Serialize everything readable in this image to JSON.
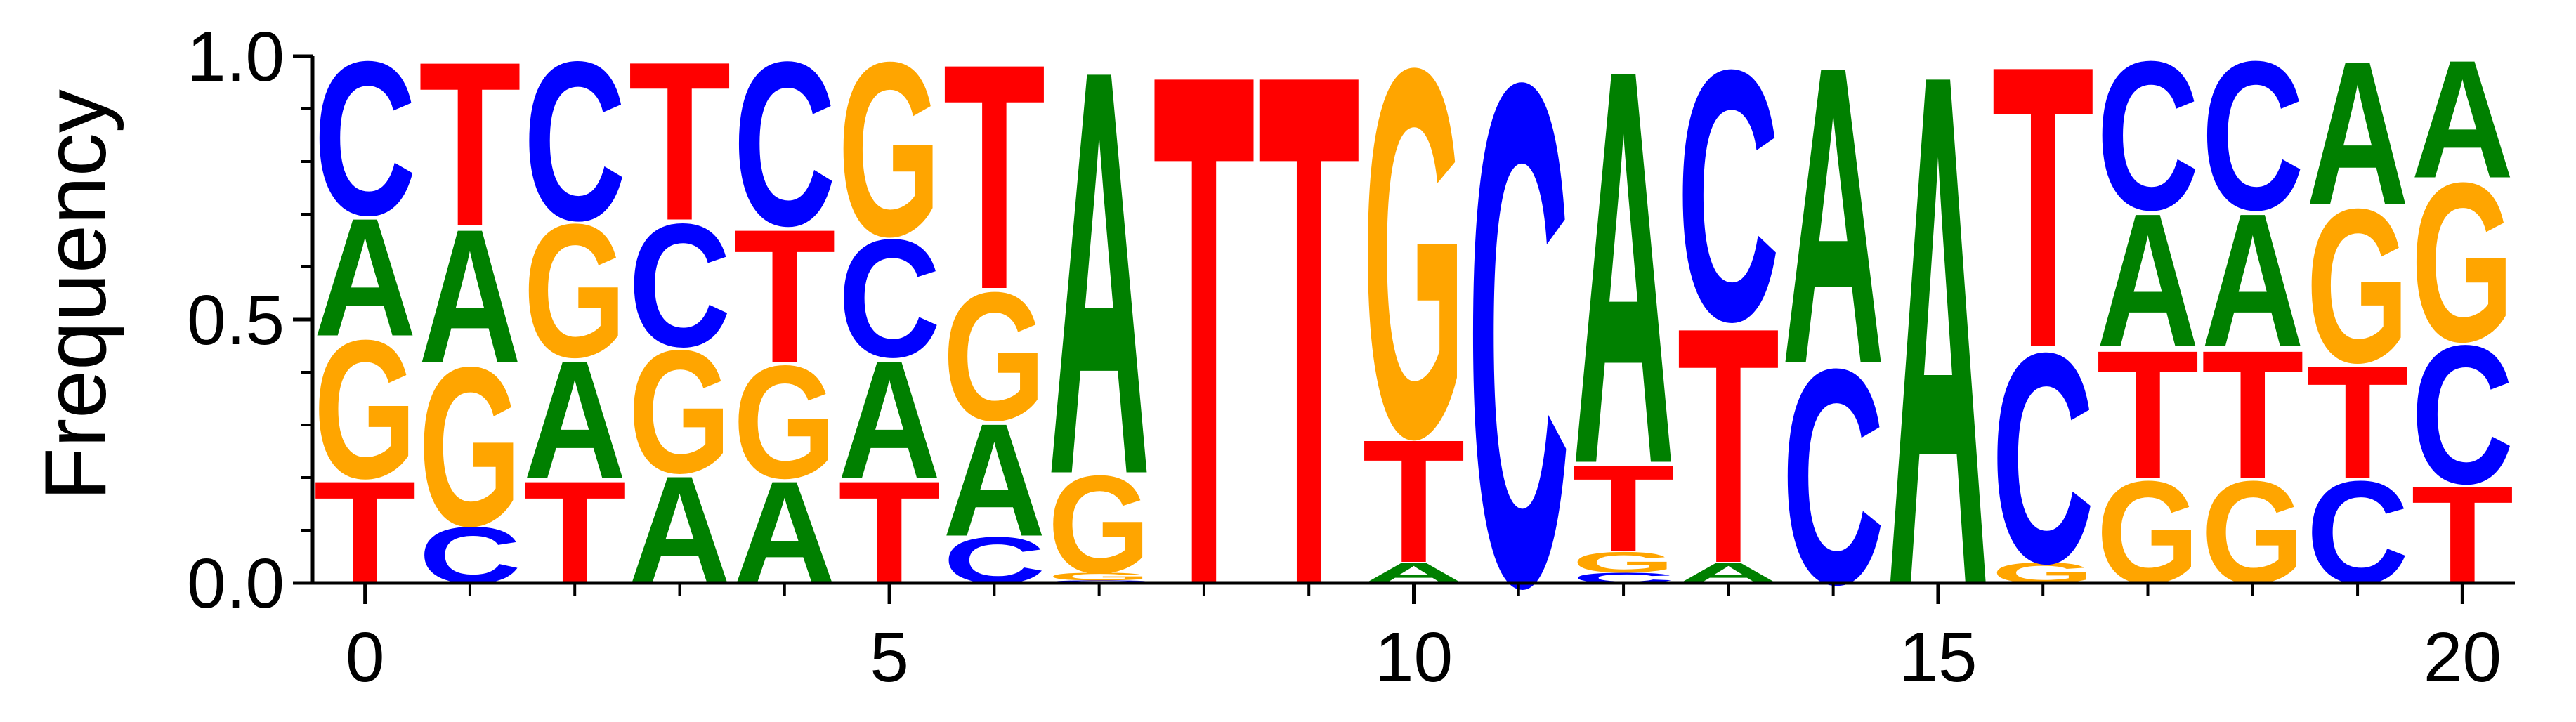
{
  "chart_data": {
    "type": "sequence-logo",
    "title": "",
    "xlabel": "",
    "ylabel": "Frequency",
    "xlim": [
      -0.5,
      20.5
    ],
    "ylim": [
      0,
      1.0
    ],
    "x_ticks": [
      0,
      5,
      10,
      15,
      20
    ],
    "x_tick_labels": [
      "0",
      "5",
      "10",
      "15",
      "20"
    ],
    "x_minor_ticks": [
      1,
      2,
      3,
      4,
      6,
      7,
      8,
      9,
      11,
      12,
      13,
      14,
      16,
      17,
      18,
      19
    ],
    "y_ticks": [
      0.0,
      0.5,
      1.0
    ],
    "y_tick_labels": [
      "0.0",
      "0.5",
      "1.0"
    ],
    "y_minor_ticks": [
      0.1,
      0.2,
      0.3,
      0.4,
      0.6,
      0.7,
      0.8,
      0.9
    ],
    "grid": false,
    "colors": {
      "A": "#008000",
      "C": "#0000ff",
      "G": "#ffa500",
      "T": "#ff0000"
    },
    "positions": [
      {
        "x": 0,
        "stack": [
          [
            "T",
            0.2
          ],
          [
            "G",
            0.27
          ],
          [
            "A",
            0.23
          ],
          [
            "C",
            0.3
          ]
        ]
      },
      {
        "x": 1,
        "stack": [
          [
            "C",
            0.11
          ],
          [
            "G",
            0.31
          ],
          [
            "A",
            0.26
          ],
          [
            "T",
            0.32
          ]
        ]
      },
      {
        "x": 2,
        "stack": [
          [
            "T",
            0.2
          ],
          [
            "A",
            0.23
          ],
          [
            "G",
            0.26
          ],
          [
            "C",
            0.31
          ]
        ]
      },
      {
        "x": 3,
        "stack": [
          [
            "A",
            0.21
          ],
          [
            "G",
            0.24
          ],
          [
            "C",
            0.24
          ],
          [
            "T",
            0.31
          ]
        ]
      },
      {
        "x": 4,
        "stack": [
          [
            "A",
            0.2
          ],
          [
            "G",
            0.22
          ],
          [
            "T",
            0.26
          ],
          [
            "C",
            0.32
          ]
        ]
      },
      {
        "x": 5,
        "stack": [
          [
            "T",
            0.2
          ],
          [
            "A",
            0.23
          ],
          [
            "C",
            0.23
          ],
          [
            "G",
            0.34
          ]
        ]
      },
      {
        "x": 6,
        "stack": [
          [
            "C",
            0.09
          ],
          [
            "A",
            0.22
          ],
          [
            "G",
            0.25
          ],
          [
            "T",
            0.44
          ]
        ]
      },
      {
        "x": 7,
        "stack": [
          [
            "C",
            0.005
          ],
          [
            "G",
            0.015
          ],
          [
            "G",
            0.19
          ],
          [
            "A",
            0.79
          ]
        ]
      },
      {
        "x": 8,
        "stack": [
          [
            "T",
            1.0
          ]
        ]
      },
      {
        "x": 9,
        "stack": [
          [
            "T",
            1.0
          ]
        ]
      },
      {
        "x": 10,
        "stack": [
          [
            "A",
            0.04
          ],
          [
            "T",
            0.24
          ],
          [
            "G",
            0.72
          ]
        ]
      },
      {
        "x": 11,
        "stack": [
          [
            "C",
            0.98
          ]
        ]
      },
      {
        "x": 12,
        "stack": [
          [
            "C",
            0.02
          ],
          [
            "G",
            0.04
          ],
          [
            "T",
            0.17
          ],
          [
            "A",
            0.77
          ]
        ]
      },
      {
        "x": 13,
        "stack": [
          [
            "A",
            0.04
          ],
          [
            "T",
            0.46
          ],
          [
            "C",
            0.49
          ]
        ]
      },
      {
        "x": 14,
        "stack": [
          [
            "C",
            0.42
          ],
          [
            "A",
            0.58
          ]
        ]
      },
      {
        "x": 15,
        "stack": [
          [
            "A",
            1.0
          ]
        ]
      },
      {
        "x": 16,
        "stack": [
          [
            "G",
            0.04
          ],
          [
            "C",
            0.41
          ],
          [
            "T",
            0.55
          ]
        ]
      },
      {
        "x": 17,
        "stack": [
          [
            "G",
            0.2
          ],
          [
            "T",
            0.25
          ],
          [
            "A",
            0.26
          ],
          [
            "C",
            0.29
          ]
        ]
      },
      {
        "x": 18,
        "stack": [
          [
            "G",
            0.2
          ],
          [
            "T",
            0.25
          ],
          [
            "A",
            0.26
          ],
          [
            "C",
            0.29
          ]
        ]
      },
      {
        "x": 19,
        "stack": [
          [
            "C",
            0.2
          ],
          [
            "T",
            0.22
          ],
          [
            "G",
            0.3
          ],
          [
            "A",
            0.28
          ]
        ]
      },
      {
        "x": 20,
        "stack": [
          [
            "T",
            0.19
          ],
          [
            "C",
            0.27
          ],
          [
            "G",
            0.31
          ],
          [
            "A",
            0.23
          ]
        ]
      }
    ]
  }
}
